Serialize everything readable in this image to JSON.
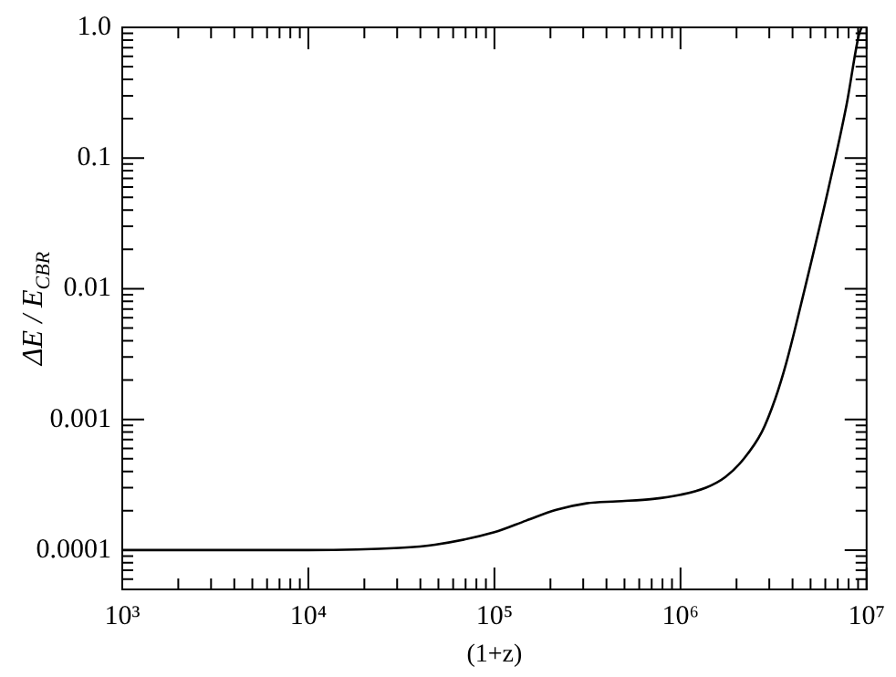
{
  "chart_data": {
    "type": "line",
    "xlabel": "(1+z)",
    "ylabel": "ΔE / E$_{CBR}$",
    "log": "xy",
    "grid": false,
    "legend": false,
    "marker": "none",
    "line_style": "solid",
    "x": [
      1000,
      10000,
      30800,
      48000,
      100000,
      148000,
      215000,
      313000,
      455000,
      710000,
      1000000,
      1370000,
      1750000,
      2190000,
      2740000,
      3230000,
      3700000,
      4630000,
      6240000,
      7810000,
      9080000,
      9400000
    ],
    "series": [
      {
        "color": "#000000",
        "values": [
          0.0001,
          0.0001,
          0.000104,
          0.00011,
          0.000137,
          0.000168,
          0.000203,
          0.000228,
          0.000236,
          0.000246,
          0.000265,
          0.0003,
          0.000364,
          0.0005,
          0.000805,
          0.00144,
          0.0027,
          0.0097,
          0.0586,
          0.257,
          0.87,
          1.0
        ]
      }
    ],
    "xlim": [
      1000,
      10000000
    ],
    "xticks": [
      {
        "value": 1000,
        "label": "10³"
      },
      {
        "value": 2000,
        "label": null
      },
      {
        "value": 3000,
        "label": null
      },
      {
        "value": 4000,
        "label": null
      },
      {
        "value": 5000,
        "label": null
      },
      {
        "value": 6000,
        "label": null
      },
      {
        "value": 7000,
        "label": null
      },
      {
        "value": 8000,
        "label": null
      },
      {
        "value": 9000,
        "label": null
      },
      {
        "value": 10000,
        "label": "10⁴"
      },
      {
        "value": 20000,
        "label": null
      },
      {
        "value": 30000,
        "label": null
      },
      {
        "value": 40000,
        "label": null
      },
      {
        "value": 50000,
        "label": null
      },
      {
        "value": 60000,
        "label": null
      },
      {
        "value": 70000,
        "label": null
      },
      {
        "value": 80000,
        "label": null
      },
      {
        "value": 90000,
        "label": null
      },
      {
        "value": 100000,
        "label": "10⁵"
      },
      {
        "value": 200000,
        "label": null
      },
      {
        "value": 300000,
        "label": null
      },
      {
        "value": 400000,
        "label": null
      },
      {
        "value": 500000,
        "label": null
      },
      {
        "value": 600000,
        "label": null
      },
      {
        "value": 700000,
        "label": null
      },
      {
        "value": 800000,
        "label": null
      },
      {
        "value": 900000,
        "label": null
      },
      {
        "value": 1000000,
        "label": "10⁶"
      },
      {
        "value": 2000000,
        "label": null
      },
      {
        "value": 3000000,
        "label": null
      },
      {
        "value": 4000000,
        "label": null
      },
      {
        "value": 5000000,
        "label": null
      },
      {
        "value": 6000000,
        "label": null
      },
      {
        "value": 7000000,
        "label": null
      },
      {
        "value": 8000000,
        "label": null
      },
      {
        "value": 9000000,
        "label": null
      },
      {
        "value": 10000000,
        "label": "10⁷"
      }
    ],
    "ylim": [
      5e-05,
      1
    ],
    "yticks": [
      {
        "value": 5e-05,
        "label": null
      },
      {
        "value": 6e-05,
        "label": null
      },
      {
        "value": 7e-05,
        "label": null
      },
      {
        "value": 8e-05,
        "label": null
      },
      {
        "value": 9e-05,
        "label": null
      },
      0.0001,
      {
        "value": 0.0002,
        "label": null
      },
      {
        "value": 0.0003,
        "label": null
      },
      {
        "value": 0.0004,
        "label": null
      },
      {
        "value": 0.0005,
        "label": null
      },
      {
        "value": 0.0006,
        "label": null
      },
      {
        "value": 0.0007,
        "label": null
      },
      {
        "value": 0.0008,
        "label": null
      },
      {
        "value": 0.0009,
        "label": null
      },
      0.001,
      {
        "value": 0.002,
        "label": null
      },
      {
        "value": 0.003,
        "label": null
      },
      {
        "value": 0.004,
        "label": null
      },
      {
        "value": 0.005,
        "label": null
      },
      {
        "value": 0.006,
        "label": null
      },
      {
        "value": 0.007,
        "label": null
      },
      {
        "value": 0.008,
        "label": null
      },
      {
        "value": 0.009,
        "label": null
      },
      0.01,
      {
        "value": 0.02,
        "label": null
      },
      {
        "value": 0.03,
        "label": null
      },
      {
        "value": 0.04,
        "label": null
      },
      {
        "value": 0.05,
        "label": null
      },
      {
        "value": 0.06,
        "label": null
      },
      {
        "value": 0.07,
        "label": null
      },
      {
        "value": 0.08,
        "label": null
      },
      {
        "value": 0.09,
        "label": null
      },
      0.1,
      {
        "value": 0.2,
        "label": null
      },
      {
        "value": 0.3,
        "label": null
      },
      {
        "value": 0.4,
        "label": null
      },
      {
        "value": 0.5,
        "label": null
      },
      {
        "value": 0.6,
        "label": null
      },
      {
        "value": 0.7,
        "label": null
      },
      {
        "value": 0.8,
        "label": null
      },
      {
        "value": 0.9,
        "label": null
      },
      {
        "value": 1,
        "label": "1.0"
      }
    ]
  }
}
